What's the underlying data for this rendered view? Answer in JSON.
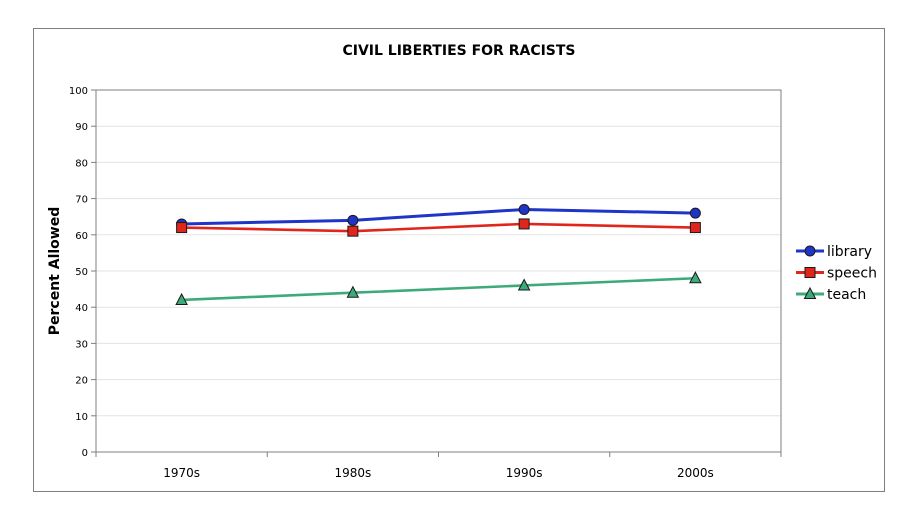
{
  "chart_data": {
    "type": "line",
    "title": "CIVIL LIBERTIES FOR RACISTS",
    "xlabel": "",
    "ylabel": "Percent Allowed",
    "categories": [
      "1970s",
      "1980s",
      "1990s",
      "2000s"
    ],
    "ylim": [
      0,
      100
    ],
    "yticks": [
      "0",
      "10",
      "20",
      "30",
      "40",
      "50",
      "60",
      "70",
      "80",
      "90",
      "100"
    ],
    "grid": true,
    "legend_position": "right",
    "series": [
      {
        "name": "library",
        "values": [
          63,
          64,
          67,
          66
        ],
        "color": "#1f35c8",
        "marker": "circle"
      },
      {
        "name": "speech",
        "values": [
          62,
          61,
          63,
          62
        ],
        "color": "#e0261c",
        "marker": "square"
      },
      {
        "name": "teach",
        "values": [
          42,
          44,
          46,
          48
        ],
        "color": "#3daa7a",
        "marker": "triangle"
      }
    ]
  }
}
